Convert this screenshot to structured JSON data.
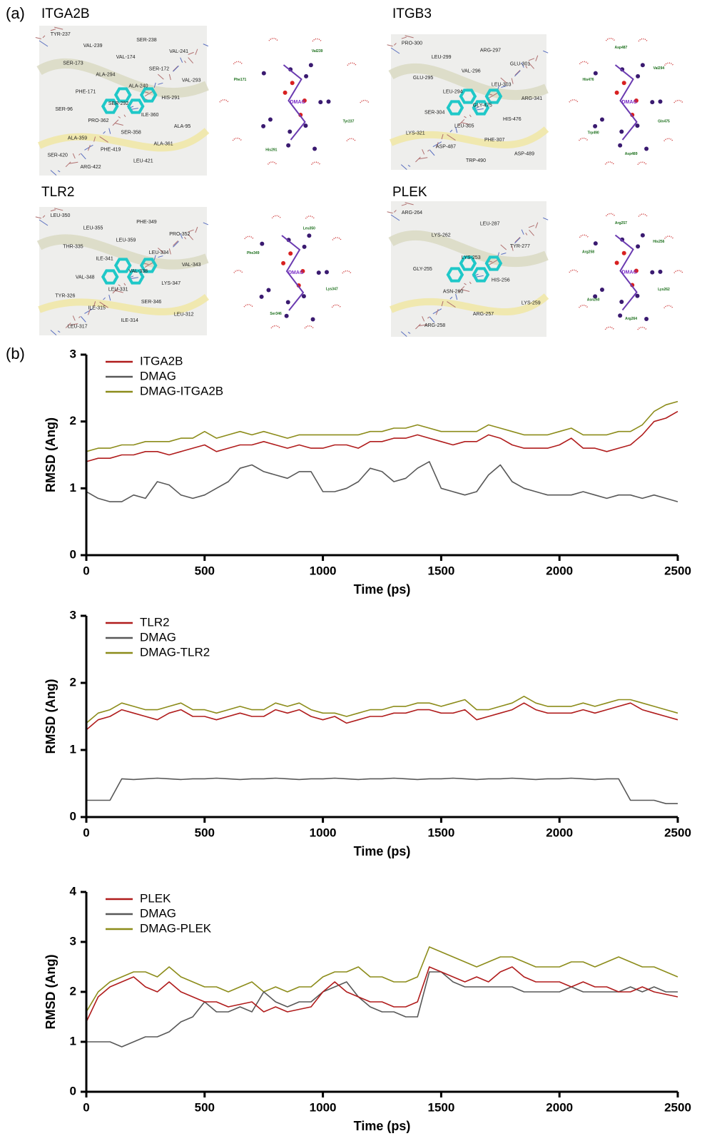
{
  "figure_a": {
    "label": "(a)",
    "complexes": [
      {
        "name": "ITGA2B",
        "ligand": "DMAG",
        "residues_3d": [
          "TYR-237",
          "SER-238",
          "VAL-239",
          "VAL-241",
          "VAL-174",
          "SER-173",
          "SER-172",
          "ALA-294",
          "VAL-293",
          "ALA-240",
          "PHE-171",
          "HIS-291",
          "SER-292",
          "SER-96",
          "ILE-360",
          "PRO-362",
          "ALA-95",
          "SER-358",
          "ALA-359",
          "ALA-361",
          "PHE-419",
          "SER-420",
          "LEU-421",
          "ARG-422"
        ],
        "residues_2d": [
          "Tyr237",
          "His291",
          "Phe171",
          "Val239"
        ]
      },
      {
        "name": "ITGB3",
        "ligand": "DMAG",
        "residues_3d": [
          "PRO-300",
          "ARG-297",
          "LEU-299",
          "GLU-301",
          "VAL-296",
          "GLU-295",
          "LEU-303",
          "LEU-294",
          "ARG-341",
          "GLY-475",
          "SER-304",
          "HIS-476",
          "LEU-305",
          "LYS-321",
          "PHE-307",
          "ASP-487",
          "ASP-489",
          "TRP-490"
        ],
        "residues_2d": [
          "Gln475",
          "Asp489",
          "Trp490",
          "His476",
          "Asp487",
          "Val294"
        ]
      },
      {
        "name": "TLR2",
        "ligand": "DMAG",
        "residues_3d": [
          "LEU-350",
          "PHE-349",
          "LEU-355",
          "PRO-352",
          "LEU-359",
          "THR-335",
          "LEU-334",
          "ILE-341",
          "VAL-343",
          "VAL-338",
          "VAL-348",
          "LYS-347",
          "LEU-331",
          "TYR-326",
          "SER-346",
          "ILE-315",
          "LEU-312",
          "ILE-314",
          "LEU-317"
        ],
        "residues_2d": [
          "Lys347",
          "Ser346",
          "Phe349",
          "Leu350"
        ]
      },
      {
        "name": "PLEK",
        "ligand": "DMAG",
        "residues_3d": [
          "ARG-264",
          "LEU-287",
          "LYS-262",
          "TYR-277",
          "LYS-253",
          "GLY-255",
          "HIS-256",
          "ASN-260",
          "LYS-259",
          "ARG-257",
          "ARG-258"
        ],
        "residues_2d": [
          "Lys262",
          "Arg264",
          "Asn260",
          "Arg258",
          "Arg257",
          "His256"
        ]
      }
    ]
  },
  "figure_b": {
    "label": "(b)"
  },
  "chart_data": [
    {
      "type": "line",
      "xlabel": "Time (ps)",
      "ylabel": "RMSD (Ang)",
      "xlim": [
        0,
        2500
      ],
      "ylim": [
        0,
        3
      ],
      "xticks": [
        0,
        500,
        1000,
        1500,
        2000,
        2500
      ],
      "yticks": [
        0,
        1,
        2,
        3
      ],
      "x": [
        0,
        50,
        100,
        150,
        200,
        250,
        300,
        350,
        400,
        450,
        500,
        550,
        600,
        650,
        700,
        750,
        800,
        850,
        900,
        950,
        1000,
        1050,
        1100,
        1150,
        1200,
        1250,
        1300,
        1350,
        1400,
        1450,
        1500,
        1550,
        1600,
        1650,
        1700,
        1750,
        1800,
        1850,
        1900,
        1950,
        2000,
        2050,
        2100,
        2150,
        2200,
        2250,
        2300,
        2350,
        2400,
        2450,
        2500
      ],
      "series": [
        {
          "name": "ITGA2B",
          "color": "#b01c1c",
          "values": [
            1.4,
            1.45,
            1.45,
            1.5,
            1.5,
            1.55,
            1.55,
            1.5,
            1.55,
            1.6,
            1.65,
            1.55,
            1.6,
            1.65,
            1.65,
            1.7,
            1.65,
            1.6,
            1.65,
            1.6,
            1.6,
            1.65,
            1.65,
            1.6,
            1.7,
            1.7,
            1.75,
            1.75,
            1.8,
            1.75,
            1.7,
            1.65,
            1.7,
            1.7,
            1.8,
            1.75,
            1.65,
            1.6,
            1.6,
            1.6,
            1.65,
            1.75,
            1.6,
            1.6,
            1.55,
            1.6,
            1.65,
            1.8,
            2.0,
            2.05,
            2.15
          ]
        },
        {
          "name": "DMAG",
          "color": "#585858",
          "values": [
            0.95,
            0.85,
            0.8,
            0.8,
            0.9,
            0.85,
            1.1,
            1.05,
            0.9,
            0.85,
            0.9,
            1.0,
            1.1,
            1.3,
            1.35,
            1.25,
            1.2,
            1.15,
            1.25,
            1.25,
            0.95,
            0.95,
            1.0,
            1.1,
            1.3,
            1.25,
            1.1,
            1.15,
            1.3,
            1.4,
            1.0,
            0.95,
            0.9,
            0.95,
            1.2,
            1.35,
            1.1,
            1.0,
            0.95,
            0.9,
            0.9,
            0.9,
            0.95,
            0.9,
            0.85,
            0.9,
            0.9,
            0.85,
            0.9,
            0.85,
            0.8
          ]
        },
        {
          "name": "DMAG-ITGA2B",
          "color": "#8c8c1a",
          "values": [
            1.55,
            1.6,
            1.6,
            1.65,
            1.65,
            1.7,
            1.7,
            1.7,
            1.75,
            1.75,
            1.85,
            1.75,
            1.8,
            1.85,
            1.8,
            1.85,
            1.8,
            1.75,
            1.8,
            1.8,
            1.8,
            1.8,
            1.8,
            1.8,
            1.85,
            1.85,
            1.9,
            1.9,
            1.95,
            1.9,
            1.85,
            1.85,
            1.85,
            1.85,
            1.95,
            1.9,
            1.85,
            1.8,
            1.8,
            1.8,
            1.85,
            1.9,
            1.8,
            1.8,
            1.8,
            1.85,
            1.85,
            1.95,
            2.15,
            2.25,
            2.3
          ]
        }
      ]
    },
    {
      "type": "line",
      "xlabel": "Time (ps)",
      "ylabel": "RMSD (Ang)",
      "xlim": [
        0,
        2500
      ],
      "ylim": [
        0,
        3
      ],
      "xticks": [
        0,
        500,
        1000,
        1500,
        2000,
        2500
      ],
      "yticks": [
        0,
        1,
        2,
        3
      ],
      "x": [
        0,
        50,
        100,
        150,
        200,
        250,
        300,
        350,
        400,
        450,
        500,
        550,
        600,
        650,
        700,
        750,
        800,
        850,
        900,
        950,
        1000,
        1050,
        1100,
        1150,
        1200,
        1250,
        1300,
        1350,
        1400,
        1450,
        1500,
        1550,
        1600,
        1650,
        1700,
        1750,
        1800,
        1850,
        1900,
        1950,
        2000,
        2050,
        2100,
        2150,
        2200,
        2250,
        2300,
        2350,
        2400,
        2450,
        2500
      ],
      "series": [
        {
          "name": "TLR2",
          "color": "#b01c1c",
          "values": [
            1.3,
            1.45,
            1.5,
            1.6,
            1.55,
            1.5,
            1.45,
            1.55,
            1.6,
            1.5,
            1.5,
            1.45,
            1.5,
            1.55,
            1.5,
            1.5,
            1.6,
            1.55,
            1.6,
            1.5,
            1.45,
            1.5,
            1.4,
            1.45,
            1.5,
            1.5,
            1.55,
            1.55,
            1.6,
            1.6,
            1.55,
            1.55,
            1.6,
            1.45,
            1.5,
            1.55,
            1.6,
            1.7,
            1.6,
            1.55,
            1.55,
            1.55,
            1.6,
            1.55,
            1.6,
            1.65,
            1.7,
            1.6,
            1.55,
            1.5,
            1.45
          ]
        },
        {
          "name": "DMAG",
          "color": "#585858",
          "values": [
            0.25,
            0.25,
            0.25,
            0.57,
            0.56,
            0.57,
            0.58,
            0.57,
            0.56,
            0.57,
            0.57,
            0.58,
            0.57,
            0.56,
            0.57,
            0.57,
            0.58,
            0.57,
            0.56,
            0.57,
            0.57,
            0.58,
            0.57,
            0.56,
            0.57,
            0.57,
            0.58,
            0.57,
            0.56,
            0.57,
            0.57,
            0.58,
            0.57,
            0.56,
            0.57,
            0.57,
            0.58,
            0.57,
            0.56,
            0.57,
            0.57,
            0.58,
            0.57,
            0.56,
            0.57,
            0.57,
            0.25,
            0.25,
            0.25,
            0.2,
            0.2
          ]
        },
        {
          "name": "DMAG-TLR2",
          "color": "#8c8c1a",
          "values": [
            1.4,
            1.55,
            1.6,
            1.7,
            1.65,
            1.6,
            1.6,
            1.65,
            1.7,
            1.6,
            1.6,
            1.55,
            1.6,
            1.65,
            1.6,
            1.6,
            1.7,
            1.65,
            1.7,
            1.6,
            1.55,
            1.55,
            1.5,
            1.55,
            1.6,
            1.6,
            1.65,
            1.65,
            1.7,
            1.7,
            1.65,
            1.7,
            1.75,
            1.6,
            1.6,
            1.65,
            1.7,
            1.8,
            1.7,
            1.65,
            1.65,
            1.65,
            1.7,
            1.65,
            1.7,
            1.75,
            1.75,
            1.7,
            1.65,
            1.6,
            1.55
          ]
        }
      ]
    },
    {
      "type": "line",
      "xlabel": "Time (ps)",
      "ylabel": "RMSD (Ang)",
      "xlim": [
        0,
        2500
      ],
      "ylim": [
        0,
        4
      ],
      "xticks": [
        0,
        500,
        1000,
        1500,
        2000,
        2500
      ],
      "yticks": [
        0,
        1,
        2,
        3,
        4
      ],
      "x": [
        0,
        50,
        100,
        150,
        200,
        250,
        300,
        350,
        400,
        450,
        500,
        550,
        600,
        650,
        700,
        750,
        800,
        850,
        900,
        950,
        1000,
        1050,
        1100,
        1150,
        1200,
        1250,
        1300,
        1350,
        1400,
        1450,
        1500,
        1550,
        1600,
        1650,
        1700,
        1750,
        1800,
        1850,
        1900,
        1950,
        2000,
        2050,
        2100,
        2150,
        2200,
        2250,
        2300,
        2350,
        2400,
        2450,
        2500
      ],
      "series": [
        {
          "name": "PLEK",
          "color": "#b01c1c",
          "values": [
            1.4,
            1.9,
            2.1,
            2.2,
            2.3,
            2.1,
            2.0,
            2.2,
            2.0,
            1.9,
            1.8,
            1.8,
            1.7,
            1.75,
            1.8,
            1.6,
            1.7,
            1.6,
            1.65,
            1.7,
            2.0,
            2.2,
            2.0,
            1.9,
            1.8,
            1.8,
            1.7,
            1.7,
            1.8,
            2.5,
            2.4,
            2.3,
            2.2,
            2.3,
            2.2,
            2.4,
            2.5,
            2.3,
            2.2,
            2.2,
            2.2,
            2.1,
            2.2,
            2.1,
            2.1,
            2.0,
            2.0,
            2.1,
            2.0,
            1.95,
            1.9
          ]
        },
        {
          "name": "DMAG",
          "color": "#585858",
          "values": [
            1.0,
            1.0,
            1.0,
            0.9,
            1.0,
            1.1,
            1.1,
            1.2,
            1.4,
            1.5,
            1.8,
            1.6,
            1.6,
            1.7,
            1.6,
            2.0,
            1.8,
            1.7,
            1.8,
            1.8,
            2.0,
            2.1,
            2.2,
            1.9,
            1.7,
            1.6,
            1.6,
            1.5,
            1.5,
            2.4,
            2.4,
            2.2,
            2.1,
            2.1,
            2.1,
            2.1,
            2.1,
            2.0,
            2.0,
            2.0,
            2.0,
            2.1,
            2.0,
            2.0,
            2.0,
            2.0,
            2.1,
            2.0,
            2.1,
            2.0,
            2.0
          ]
        },
        {
          "name": "DMAG-PLEK",
          "color": "#8c8c1a",
          "values": [
            1.6,
            2.0,
            2.2,
            2.3,
            2.4,
            2.4,
            2.3,
            2.5,
            2.3,
            2.2,
            2.1,
            2.1,
            2.0,
            2.1,
            2.2,
            2.0,
            2.1,
            2.0,
            2.1,
            2.1,
            2.3,
            2.4,
            2.4,
            2.5,
            2.3,
            2.3,
            2.2,
            2.2,
            2.3,
            2.9,
            2.8,
            2.7,
            2.6,
            2.5,
            2.6,
            2.7,
            2.7,
            2.6,
            2.5,
            2.5,
            2.5,
            2.6,
            2.6,
            2.5,
            2.6,
            2.7,
            2.6,
            2.5,
            2.5,
            2.4,
            2.3
          ]
        }
      ]
    }
  ]
}
